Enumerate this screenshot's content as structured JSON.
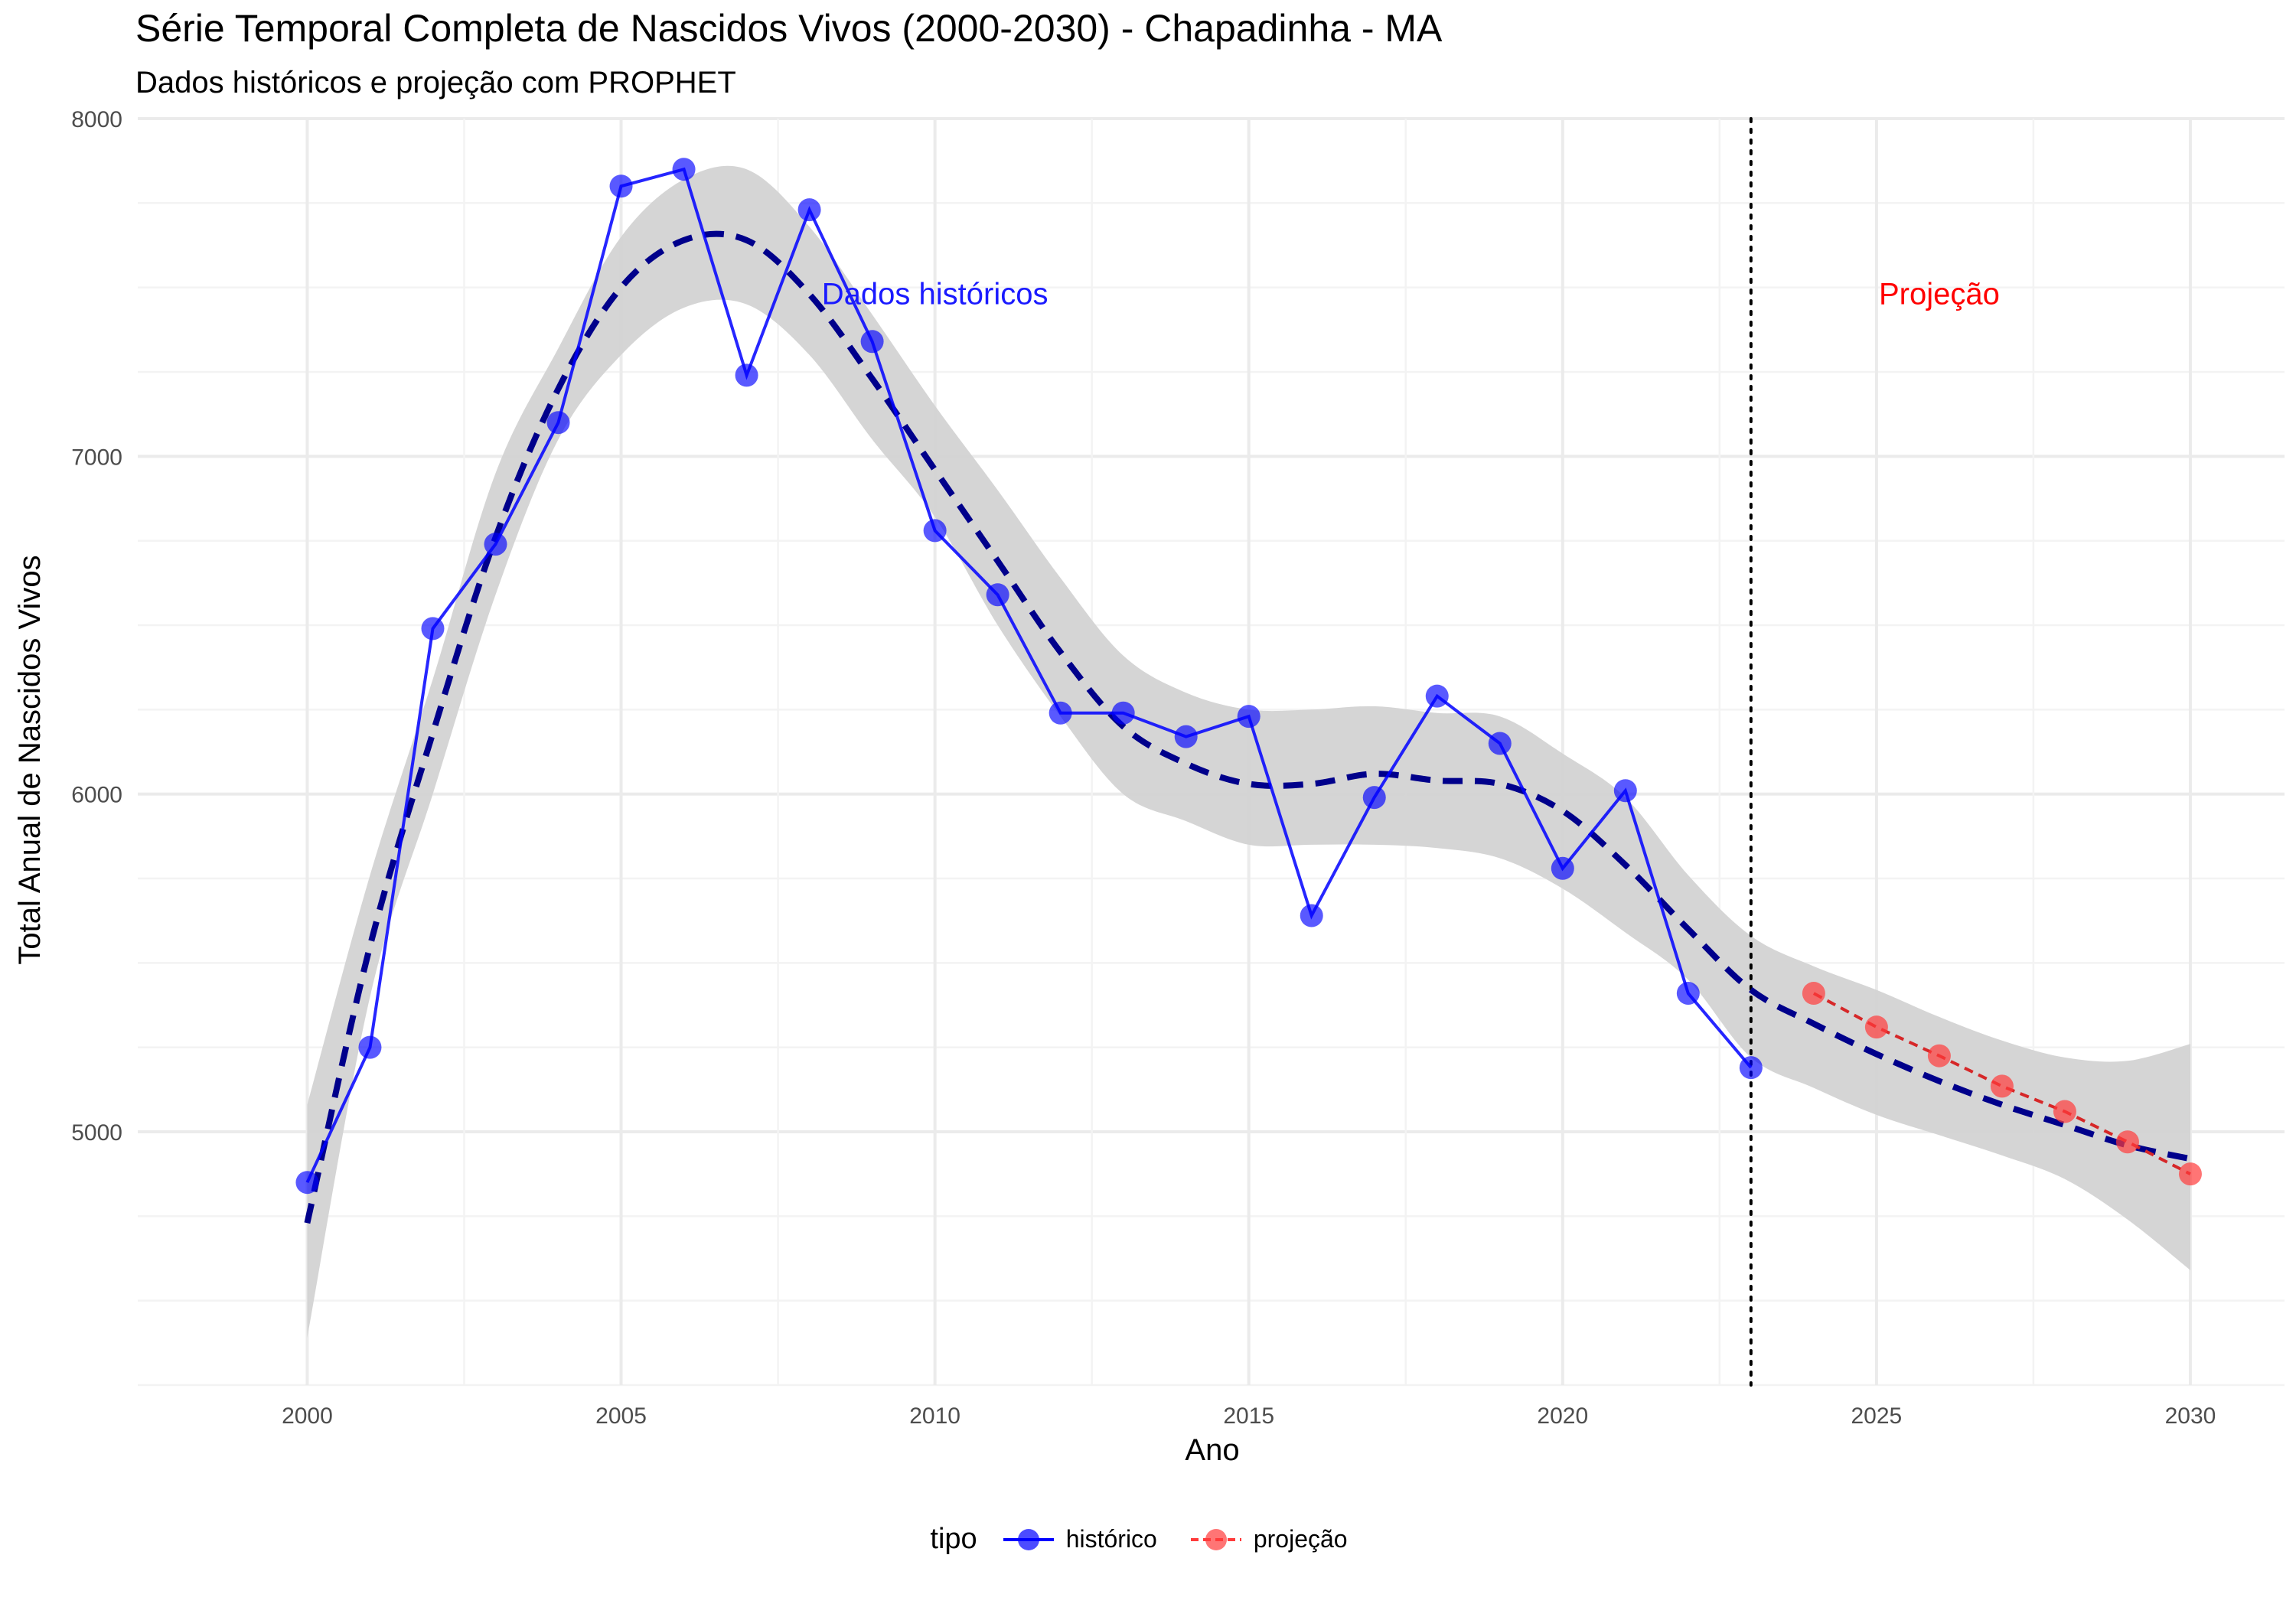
{
  "title": "Série Temporal Completa de Nascidos Vivos (2000-2030) -  Chapadinha - MA",
  "subtitle": "Dados históricos e projeção com PROPHET",
  "chart_data": {
    "type": "line",
    "xlabel": "Ano",
    "ylabel": "Total Anual de Nascidos Vivos",
    "xlim": [
      1997.3,
      2031.5
    ],
    "ylim": [
      4250,
      8000
    ],
    "x_ticks": [
      2000,
      2005,
      2010,
      2015,
      2020,
      2025,
      2030
    ],
    "y_ticks": [
      5000,
      6000,
      7000,
      8000
    ],
    "grid": true,
    "legend": {
      "title": "tipo",
      "position": "bottom",
      "items": [
        {
          "label": "histórico",
          "color": "#0000ff"
        },
        {
          "label": "projeção",
          "color": "#ff3b3b"
        }
      ]
    },
    "vline": {
      "x": 2023,
      "style": "dotted"
    },
    "annotations": [
      {
        "text": "Dados históricos",
        "x": 2010,
        "y": 7450,
        "color": "#1a1aff"
      },
      {
        "text": "Projeção",
        "x": 2026,
        "y": 7450,
        "color": "#ff0000"
      }
    ],
    "series": [
      {
        "name": "histórico",
        "color": "#0000ff",
        "x": [
          2000,
          2001,
          2002,
          2003,
          2004,
          2005,
          2006,
          2007,
          2008,
          2009,
          2010,
          2011,
          2012,
          2013,
          2014,
          2015,
          2016,
          2017,
          2018,
          2019,
          2020,
          2021,
          2022,
          2023
        ],
        "values": [
          4850,
          5250,
          6490,
          6740,
          7100,
          7800,
          7850,
          7240,
          7730,
          7340,
          6780,
          6590,
          6240,
          6240,
          6170,
          6230,
          5640,
          5990,
          6290,
          6150,
          5780,
          6010,
          5410,
          5190
        ]
      },
      {
        "name": "projeção",
        "color": "#ff3b3b",
        "x": [
          2024,
          2025,
          2026,
          2027,
          2028,
          2029,
          2030
        ],
        "values": [
          5410,
          5310,
          5225,
          5135,
          5060,
          4970,
          4875
        ]
      },
      {
        "role": "trend",
        "color": "#00008b",
        "x": [
          2000,
          2001,
          2002,
          2003,
          2004,
          2005,
          2006,
          2007,
          2008,
          2009,
          2010,
          2011,
          2012,
          2013,
          2014,
          2015,
          2016,
          2017,
          2018,
          2019,
          2020,
          2021,
          2022,
          2023,
          2024,
          2025,
          2026,
          2027,
          2028,
          2029,
          2030
        ],
        "values": [
          4730,
          5550,
          6180,
          6760,
          7200,
          7500,
          7640,
          7640,
          7480,
          7230,
          6960,
          6690,
          6420,
          6200,
          6090,
          6030,
          6030,
          6060,
          6040,
          6030,
          5950,
          5790,
          5600,
          5420,
          5320,
          5230,
          5150,
          5080,
          5020,
          4960,
          4920
        ]
      }
    ],
    "band": {
      "color": "#d3d3d3",
      "x": [
        2000,
        2001,
        2002,
        2003,
        2004,
        2005,
        2006,
        2007,
        2008,
        2009,
        2010,
        2011,
        2012,
        2013,
        2014,
        2015,
        2016,
        2017,
        2018,
        2019,
        2020,
        2021,
        2022,
        2023,
        2024,
        2025,
        2026,
        2027,
        2028,
        2029,
        2030
      ],
      "lower": [
        4390,
        5400,
        6000,
        6590,
        7050,
        7300,
        7440,
        7450,
        7300,
        7050,
        6820,
        6500,
        6230,
        6000,
        5920,
        5850,
        5850,
        5850,
        5840,
        5810,
        5720,
        5590,
        5450,
        5220,
        5130,
        5050,
        4990,
        4930,
        4860,
        4740,
        4590
      ],
      "upper": [
        5080,
        5760,
        6340,
        6950,
        7320,
        7650,
        7820,
        7850,
        7680,
        7420,
        7150,
        6900,
        6640,
        6410,
        6300,
        6250,
        6250,
        6260,
        6240,
        6230,
        6120,
        5990,
        5760,
        5580,
        5490,
        5420,
        5340,
        5270,
        5220,
        5210,
        5260
      ]
    }
  }
}
